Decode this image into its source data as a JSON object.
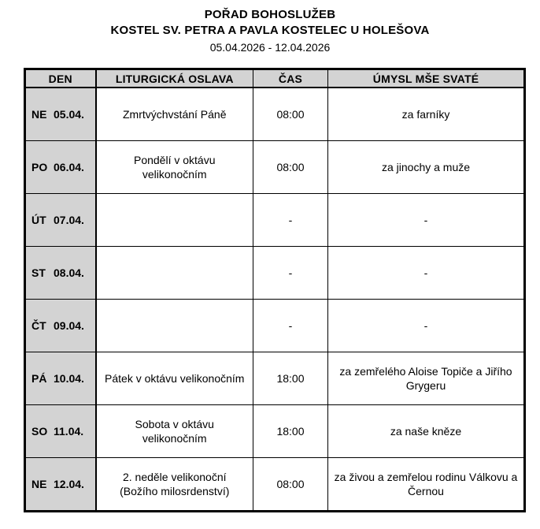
{
  "header": {
    "title": "POŘAD BOHOSLUŽEB",
    "subtitle": "KOSTEL SV. PETRA A PAVLA KOSTELEC U HOLEŠOVA",
    "date_range": "05.04.2026 - 12.04.2026"
  },
  "table": {
    "columns": [
      "DEN",
      "LITURGICKÁ OSLAVA",
      "ČAS",
      "ÚMYSL MŠE SVATÉ"
    ],
    "rows": [
      {
        "day": "NE",
        "date": "05.04.",
        "celebration": "Zmrtvýchvstání Páně",
        "time": "08:00",
        "intention": "za farníky"
      },
      {
        "day": "PO",
        "date": "06.04.",
        "celebration": "Pondělí v oktávu velikonočním",
        "time": "08:00",
        "intention": "za jinochy a muže"
      },
      {
        "day": "ÚT",
        "date": "07.04.",
        "celebration": "",
        "time": "-",
        "intention": "-"
      },
      {
        "day": "ST",
        "date": "08.04.",
        "celebration": "",
        "time": "-",
        "intention": "-"
      },
      {
        "day": "ČT",
        "date": "09.04.",
        "celebration": "",
        "time": "-",
        "intention": "-"
      },
      {
        "day": "PÁ",
        "date": "10.04.",
        "celebration": "Pátek v oktávu velikonočním",
        "time": "18:00",
        "intention": "za zemřelého Aloise Topiče a Jiřího Grygeru"
      },
      {
        "day": "SO",
        "date": "11.04.",
        "celebration": "Sobota v oktávu velikonočním",
        "time": "18:00",
        "intention": "za naše kněze"
      },
      {
        "day": "NE",
        "date": "12.04.",
        "celebration": "2. neděle velikonoční (Božího milosrdenství)",
        "time": "08:00",
        "intention": "za živou a zemřelou rodinu Válkovu a Černou"
      }
    ]
  },
  "colors": {
    "header_bg": "#d3d3d3",
    "day_column_bg": "#d3d3d3",
    "border": "#000000",
    "text": "#000000",
    "page_bg": "#ffffff"
  }
}
